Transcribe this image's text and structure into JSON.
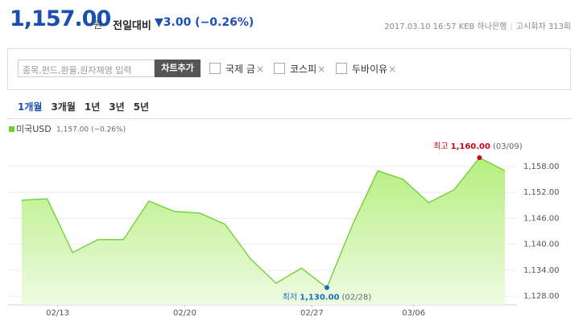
{
  "header": {
    "price": "1,157.00",
    "unit": "원",
    "compare_label": "전일대비",
    "change": "▼3.00 (−0.26%)",
    "timestamp": "2017.03.10 16:57",
    "bank": "KEB 하나은행",
    "round": "고시회차 313회"
  },
  "controls": {
    "search_placeholder": "종목,펀드,환율,원자재명 입력",
    "add_button": "차트추가",
    "compare_items": [
      "국제 금",
      "코스피",
      "두바이유"
    ],
    "remove_mark": "×",
    "periods": [
      "1개월",
      "3개월",
      "1년",
      "3년",
      "5년"
    ]
  },
  "chart_data": {
    "type": "area",
    "categories": [
      null,
      "02/13",
      null,
      null,
      null,
      null,
      "02/20",
      null,
      null,
      null,
      null,
      "02/27",
      null,
      null,
      null,
      "03/06",
      null,
      null,
      null,
      null
    ],
    "series": [
      {
        "name": "미국USD",
        "legend_detail": "1,157.00 (−0.26%)",
        "color": "#6ccf2e",
        "values": [
          1150.2,
          1150.5,
          1138.1,
          1141.1,
          1141.1,
          1150.0,
          1147.6,
          1147.2,
          1144.6,
          1136.6,
          1131.0,
          1134.5,
          1130.0,
          1144.4,
          1157.0,
          1155.0,
          1149.6,
          1152.6,
          1160.0,
          1157.0
        ],
        "value_labels": [
          null,
          null,
          null,
          null,
          null,
          null,
          null,
          null,
          null,
          null,
          null,
          null,
          "1,130.00",
          null,
          null,
          null,
          null,
          null,
          "1,160.00",
          null
        ]
      }
    ],
    "annotations": [
      {
        "index": 18,
        "label": "최고",
        "date": "(03/09)",
        "color": "#d0021b"
      },
      {
        "index": 12,
        "label": "최저",
        "date": "(02/28)",
        "color": "#1b6fc0"
      }
    ],
    "ylim": [
      1126,
      1162
    ],
    "yticks": [
      {
        "value": 1128,
        "label": "1,128.00"
      },
      {
        "value": 1134,
        "label": "1,134.00"
      },
      {
        "value": 1140,
        "label": "1,140.00"
      },
      {
        "value": 1146,
        "label": "1,146.00"
      },
      {
        "value": 1152,
        "label": "1,152.00"
      },
      {
        "value": 1158,
        "label": "1,158.00"
      }
    ],
    "grid": true
  }
}
